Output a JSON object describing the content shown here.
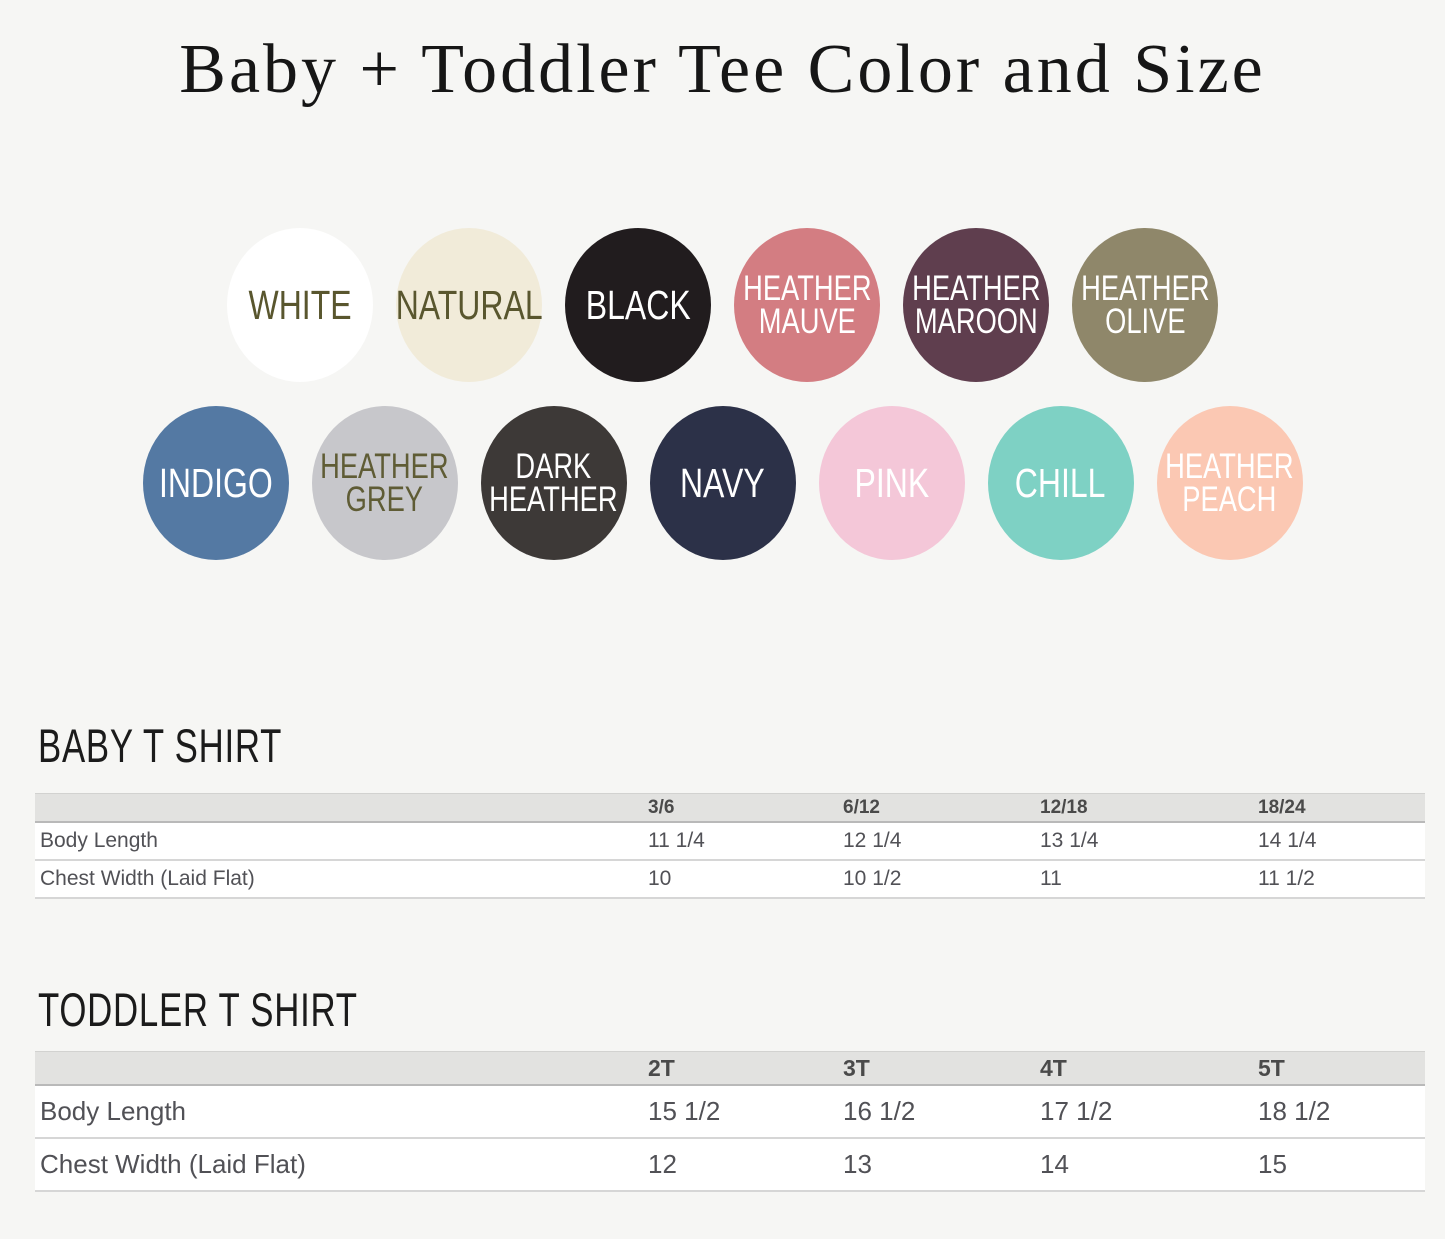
{
  "page": {
    "title": "Baby + Toddler Tee Color and Size",
    "background": "#f6f6f4"
  },
  "swatches": {
    "row1": [
      {
        "name": "white",
        "label": "WHITE",
        "bg": "#ffffff",
        "text_color": "#59562e"
      },
      {
        "name": "natural",
        "label": "NATURAL",
        "bg": "#f1ebd9",
        "text_color": "#59562e"
      },
      {
        "name": "black",
        "label": "BLACK",
        "bg": "#211c1e",
        "text_color": "#ffffff"
      },
      {
        "name": "heather-mauve",
        "label": "HEATHER\nMAUVE",
        "bg": "#d37d82",
        "text_color": "#ffffff"
      },
      {
        "name": "heather-maroon",
        "label": "HEATHER\nMAROON",
        "bg": "#5f3e4e",
        "text_color": "#ffffff"
      },
      {
        "name": "heather-olive",
        "label": "HEATHER\nOLIVE",
        "bg": "#8f876a",
        "text_color": "#ffffff"
      }
    ],
    "row2": [
      {
        "name": "indigo",
        "label": "INDIGO",
        "bg": "#5479a3",
        "text_color": "#ffffff"
      },
      {
        "name": "heather-grey",
        "label": "HEATHER\nGREY",
        "bg": "#c7c7cb",
        "text_color": "#5f5c35"
      },
      {
        "name": "dark-heather",
        "label": "DARK\nHEATHER",
        "bg": "#3d3937",
        "text_color": "#ffffff"
      },
      {
        "name": "navy",
        "label": "NAVY",
        "bg": "#2c3148",
        "text_color": "#ffffff"
      },
      {
        "name": "pink",
        "label": "PINK",
        "bg": "#f4c7d8",
        "text_color": "#ffffff"
      },
      {
        "name": "chill",
        "label": "CHILL",
        "bg": "#7ed1c4",
        "text_color": "#ffffff"
      },
      {
        "name": "heather-peach",
        "label": "HEATHER\nPEACH",
        "bg": "#fbc8b3",
        "text_color": "#ffffff"
      }
    ]
  },
  "baby": {
    "heading": "BABY T SHIRT",
    "columns": [
      "3/6",
      "6/12",
      "12/18",
      "18/24"
    ],
    "rows": [
      {
        "label": "Body Length",
        "values": [
          "11 1/4",
          "12 1/4",
          "13 1/4",
          "14 1/4"
        ]
      },
      {
        "label": "Chest Width (Laid Flat)",
        "values": [
          "10",
          "10 1/2",
          "11",
          "11 1/2"
        ]
      }
    ]
  },
  "toddler": {
    "heading": "TODDLER T SHIRT",
    "columns": [
      "2T",
      "3T",
      "4T",
      "5T"
    ],
    "rows": [
      {
        "label": "Body Length",
        "values": [
          "15 1/2",
          "16 1/2",
          "17 1/2",
          "18 1/2"
        ]
      },
      {
        "label": "Chest Width (Laid Flat)",
        "values": [
          "12",
          "13",
          "14",
          "15"
        ]
      }
    ]
  }
}
